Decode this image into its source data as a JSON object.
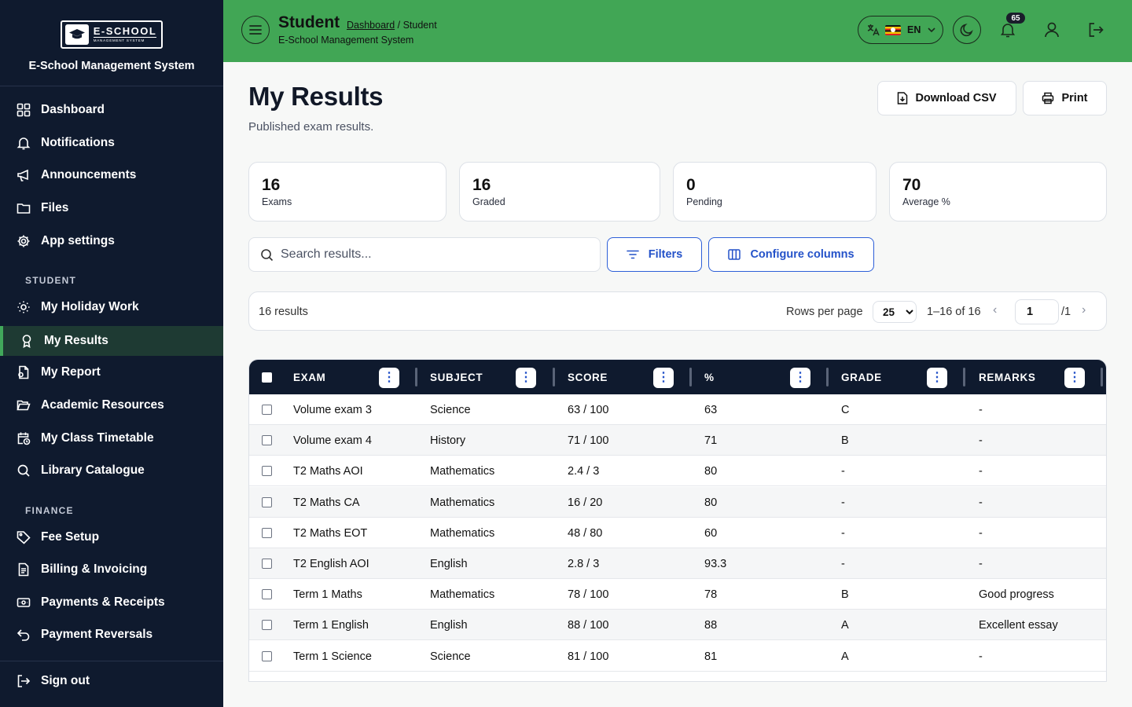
{
  "sidebar": {
    "logo_main": "E-SCHOOL",
    "logo_sub": "MANAGEMENT SYSTEM",
    "app_name": "E-School Management System",
    "items": [
      {
        "label": "Dashboard",
        "icon": "dashboard-icon"
      },
      {
        "label": "Notifications",
        "icon": "bell-icon"
      },
      {
        "label": "Announcements",
        "icon": "megaphone-icon"
      },
      {
        "label": "Files",
        "icon": "folder-icon"
      },
      {
        "label": "App settings",
        "icon": "gear-icon"
      }
    ],
    "section_student": "STUDENT",
    "student_items": [
      {
        "label": "My Holiday Work",
        "icon": "sun-icon"
      },
      {
        "label": "My Results",
        "icon": "award-icon",
        "active": true
      },
      {
        "label": "My Report",
        "icon": "report-icon"
      },
      {
        "label": "Academic Resources",
        "icon": "folder-open-icon"
      },
      {
        "label": "My Class Timetable",
        "icon": "calendar-clock-icon"
      },
      {
        "label": "Library Catalogue",
        "icon": "search-icon"
      }
    ],
    "section_finance": "FINANCE",
    "finance_items": [
      {
        "label": "Fee Setup",
        "icon": "tag-icon"
      },
      {
        "label": "Billing & Invoicing",
        "icon": "invoice-icon"
      },
      {
        "label": "Payments & Receipts",
        "icon": "receipt-icon"
      },
      {
        "label": "Payment Reversals",
        "icon": "undo-icon"
      }
    ],
    "sign_out": "Sign out"
  },
  "header": {
    "title": "Student",
    "breadcrumb_link": "Dashboard",
    "breadcrumb_current": "/ Student",
    "subtitle": "E-School Management System",
    "language": "EN",
    "notification_count": "65",
    "colors": {
      "bar": "#41a655",
      "sidebar": "#0f1a2e",
      "accent": "#2452c9"
    }
  },
  "main": {
    "title": "My Results",
    "subtitle": "Published exam results.",
    "download_csv": "Download CSV",
    "print": "Print",
    "stats": [
      {
        "value": "16",
        "label": "Exams"
      },
      {
        "value": "16",
        "label": "Graded"
      },
      {
        "value": "0",
        "label": "Pending"
      },
      {
        "value": "70",
        "label": "Average %"
      }
    ],
    "search_placeholder": "Search results...",
    "filters": "Filters",
    "configure_columns": "Configure columns",
    "results_count": "16 results",
    "rows_per_page_label": "Rows per page",
    "rows_per_page_value": "25",
    "range": "1–16 of 16",
    "page_value": "1",
    "page_total": "/1",
    "prev": "‹",
    "next": "›"
  },
  "table": {
    "columns": [
      "EXAM",
      "SUBJECT",
      "SCORE",
      "%",
      "GRADE",
      "REMARKS"
    ],
    "rows": [
      [
        "Volume exam 3",
        "Science",
        "63 / 100",
        "63",
        "C",
        "-"
      ],
      [
        "Volume exam 4",
        "History",
        "71 / 100",
        "71",
        "B",
        "-"
      ],
      [
        "T2 Maths AOI",
        "Mathematics",
        "2.4 / 3",
        "80",
        "-",
        "-"
      ],
      [
        "T2 Maths CA",
        "Mathematics",
        "16 / 20",
        "80",
        "-",
        "-"
      ],
      [
        "T2 Maths EOT",
        "Mathematics",
        "48 / 80",
        "60",
        "-",
        "-"
      ],
      [
        "T2 English AOI",
        "English",
        "2.8 / 3",
        "93.3",
        "-",
        "-"
      ],
      [
        "Term 1 Maths",
        "Mathematics",
        "78 / 100",
        "78",
        "B",
        "Good progress"
      ],
      [
        "Term 1 English",
        "English",
        "88 / 100",
        "88",
        "A",
        "Excellent essay"
      ],
      [
        "Term 1 Science",
        "Science",
        "81 / 100",
        "81",
        "A",
        "-"
      ]
    ]
  }
}
